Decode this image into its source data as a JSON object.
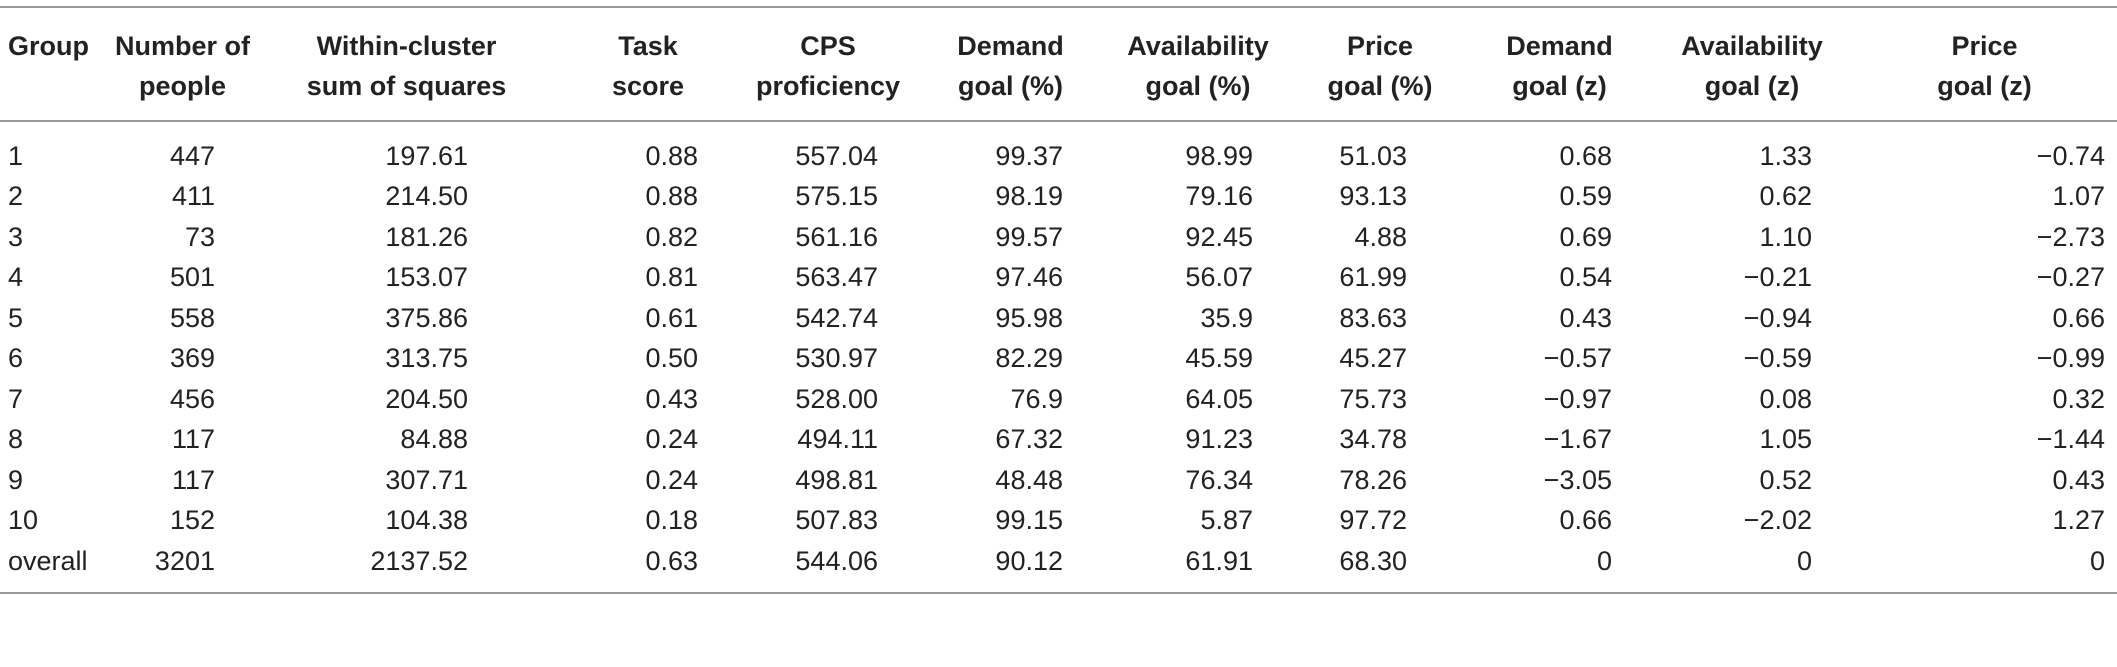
{
  "table": {
    "columns": [
      {
        "line1": "Group",
        "line2": ""
      },
      {
        "line1": "Number of",
        "line2": "people"
      },
      {
        "line1": "Within-cluster",
        "line2": "sum of squares"
      },
      {
        "line1": "Task",
        "line2": "score"
      },
      {
        "line1": "CPS",
        "line2": "proficiency"
      },
      {
        "line1": "Demand",
        "line2": "goal (%)"
      },
      {
        "line1": "Availability",
        "line2": "goal (%)"
      },
      {
        "line1": "Price",
        "line2": "goal (%)"
      },
      {
        "line1": "Demand",
        "line2": "goal (z)"
      },
      {
        "line1": "Availability",
        "line2": "goal (z)"
      },
      {
        "line1": "Price",
        "line2": "goal (z)"
      }
    ],
    "rows": [
      [
        "1",
        "447",
        "197.61",
        "0.88",
        "557.04",
        "99.37",
        "98.99",
        "51.03",
        "0.68",
        "1.33",
        "−0.74"
      ],
      [
        "2",
        "411",
        "214.50",
        "0.88",
        "575.15",
        "98.19",
        "79.16",
        "93.13",
        "0.59",
        "0.62",
        "1.07"
      ],
      [
        "3",
        "73",
        "181.26",
        "0.82",
        "561.16",
        "99.57",
        "92.45",
        "4.88",
        "0.69",
        "1.10",
        "−2.73"
      ],
      [
        "4",
        "501",
        "153.07",
        "0.81",
        "563.47",
        "97.46",
        "56.07",
        "61.99",
        "0.54",
        "−0.21",
        "−0.27"
      ],
      [
        "5",
        "558",
        "375.86",
        "0.61",
        "542.74",
        "95.98",
        "35.9",
        "83.63",
        "0.43",
        "−0.94",
        "0.66"
      ],
      [
        "6",
        "369",
        "313.75",
        "0.50",
        "530.97",
        "82.29",
        "45.59",
        "45.27",
        "−0.57",
        "−0.59",
        "−0.99"
      ],
      [
        "7",
        "456",
        "204.50",
        "0.43",
        "528.00",
        "76.9",
        "64.05",
        "75.73",
        "−0.97",
        "0.08",
        "0.32"
      ],
      [
        "8",
        "117",
        "84.88",
        "0.24",
        "494.11",
        "67.32",
        "91.23",
        "34.78",
        "−1.67",
        "1.05",
        "−1.44"
      ],
      [
        "9",
        "117",
        "307.71",
        "0.24",
        "498.81",
        "48.48",
        "76.34",
        "78.26",
        "−3.05",
        "0.52",
        "0.43"
      ],
      [
        "10",
        "152",
        "104.38",
        "0.18",
        "507.83",
        "99.15",
        "5.87",
        "97.72",
        "0.66",
        "−2.02",
        "1.27"
      ],
      [
        "overall",
        "3201",
        "2137.52",
        "0.63",
        "544.06",
        "90.12",
        "61.91",
        "68.30",
        "0",
        "0",
        "0"
      ]
    ]
  }
}
